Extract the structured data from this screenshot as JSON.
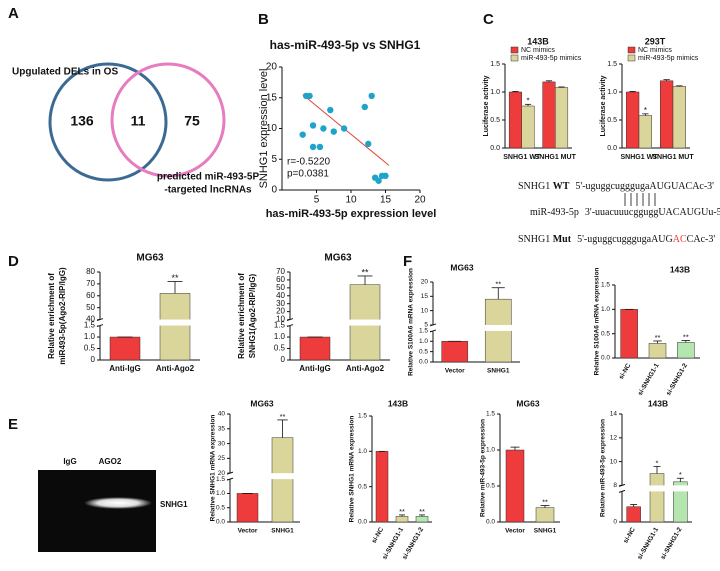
{
  "panel_labels": [
    "A",
    "B",
    "C",
    "D",
    "E",
    "F"
  ],
  "venn": {
    "left": {
      "label": "Upgulated DELs in OS",
      "count": 136,
      "color": "#3b6b94"
    },
    "right": {
      "label": [
        "predicted miR-493-5P",
        "-targeted lncRNAs"
      ],
      "count": 75,
      "color": "#e77cc0"
    },
    "overlap": 11
  },
  "sequences": [
    {
      "name": "SNHG1",
      "tag": "WT",
      "parts": [
        "5'-uguggcugggugaAUGUACAc-3'"
      ]
    },
    {
      "name": "miR-493-5p",
      "parts": [
        "3'-uuacuuucgguggUACAUGUu-5'"
      ]
    },
    {
      "name": "SNHG1",
      "tag": "Mut",
      "parts": [
        "5'-uguggcugggugaAUG",
        "AC",
        "CAc-3'"
      ]
    }
  ],
  "gel": {
    "lanes": [
      "IgG",
      "AGO2"
    ],
    "band": "SNHG1"
  },
  "chart_data": [
    {
      "type": "scatter",
      "title": "has-miR-493-5p vs SNHG1",
      "xlabel": "has-miR-493-5p expression level",
      "ylabel": "SNHG1 expression level",
      "x": [
        3.5,
        4,
        3,
        4.5,
        4.5,
        5.5,
        6,
        7,
        7.5,
        9,
        12,
        12.5,
        13,
        13.5,
        14.5,
        14,
        15
      ],
      "y": [
        15.3,
        15.3,
        9,
        10.5,
        7,
        7,
        10,
        13,
        9.5,
        10,
        13.5,
        7.5,
        15.3,
        2,
        2.3,
        1.5,
        2.3
      ],
      "color": "#1ea4c9",
      "fit_line": {
        "x": [
          3,
          15.5
        ],
        "y": [
          15.5,
          4
        ],
        "color": "#e0453f"
      },
      "annotations": [
        "r=-0.5220",
        "p=0.0381"
      ],
      "xlim": [
        0,
        20
      ],
      "xticks": [
        5,
        10,
        15,
        20
      ],
      "ylim": [
        0,
        20
      ],
      "yticks": [
        0,
        5,
        10,
        15,
        20
      ]
    },
    {
      "type": "bar",
      "title": "143B",
      "ylabel": "Luciferase activity",
      "categories": [
        "SNHG1 WT",
        "SNHG1 MUT"
      ],
      "series": [
        {
          "name": "NC mimics",
          "color": "#ee3b3b",
          "values": [
            1.0,
            1.18
          ],
          "errors": [
            0.01,
            0.02
          ]
        },
        {
          "name": "miR-493-5p mimics",
          "color": "#d9d59b",
          "values": [
            0.75,
            1.08
          ],
          "errors": [
            0.03,
            0.01
          ],
          "sig": [
            "*",
            null
          ]
        }
      ],
      "ylim": [
        0,
        1.5
      ],
      "yticks": [
        {
          "value": 0,
          "label": "0.0"
        },
        0.5,
        {
          "value": 1,
          "label": "1.0"
        },
        1.5
      ],
      "legend": "upper left"
    },
    {
      "type": "bar",
      "title": "293T",
      "ylabel": "Luciferase activity",
      "categories": [
        "SNHG1 WT",
        "SNHG1 MUT"
      ],
      "series": [
        {
          "name": "NC mimics",
          "color": "#ee3b3b",
          "values": [
            1.0,
            1.2
          ],
          "errors": [
            0.01,
            0.02
          ]
        },
        {
          "name": "miR-493-5p mimics",
          "color": "#d9d59b",
          "values": [
            0.58,
            1.1
          ],
          "errors": [
            0.03,
            0.01
          ],
          "sig": [
            "*",
            null
          ]
        }
      ],
      "ylim": [
        0,
        1.5
      ],
      "yticks": [
        {
          "value": 0,
          "label": "0.0"
        },
        0.5,
        {
          "value": 1,
          "label": "1.0"
        },
        1.5
      ],
      "legend": "upper left"
    },
    {
      "type": "bar",
      "title": "MG63",
      "ylabel": [
        "Relative enrichment of",
        "miR493-5p(Ago2-RIP/IgG)"
      ],
      "categories": [
        "Anti-IgG",
        "Anti-Ago2"
      ],
      "values": [
        1,
        62
      ],
      "errors": [
        0,
        10
      ],
      "sig": [
        null,
        "**"
      ],
      "colors": [
        "#ee3b3b",
        "#d9d59b"
      ],
      "segments": [
        {
          "ylim": [
            0,
            1.5
          ],
          "yticks": [
            0,
            0.5,
            {
              "value": 1,
              "label": "1.0"
            },
            1.5
          ]
        },
        {
          "ylim": [
            40,
            80
          ],
          "yticks": [
            40,
            50,
            60,
            70,
            80
          ]
        }
      ]
    },
    {
      "type": "bar",
      "title": "MG63",
      "ylabel": [
        "Relative enrichment of",
        "SNHG1(Ago2-RIP/IgG)"
      ],
      "categories": [
        "Anti-IgG",
        "Anti-Ago2"
      ],
      "values": [
        1,
        54
      ],
      "errors": [
        0,
        11
      ],
      "sig": [
        null,
        "**"
      ],
      "colors": [
        "#ee3b3b",
        "#d9d59b"
      ],
      "segments": [
        {
          "ylim": [
            0,
            1.5
          ],
          "yticks": [
            0,
            0.5,
            {
              "value": 1,
              "label": "1.0"
            },
            1.5
          ]
        },
        {
          "ylim": [
            10,
            70
          ],
          "yticks": [
            10,
            20,
            30,
            40,
            50,
            60,
            70
          ]
        }
      ]
    },
    {
      "type": "bar",
      "title": "MG63",
      "ylabel": "Relative S100A6 mRNA expression",
      "categories": [
        "Vector",
        "SNHG1"
      ],
      "values": [
        1,
        14
      ],
      "errors": [
        0,
        4
      ],
      "sig": [
        null,
        "**"
      ],
      "colors": [
        "#ee3b3b",
        "#d9d59b"
      ],
      "segments": [
        {
          "ylim": [
            0,
            1.5
          ],
          "yticks": [
            {
              "value": 0,
              "label": "0.0"
            },
            0.5,
            {
              "value": 1,
              "label": "1.0"
            },
            1.5
          ]
        },
        {
          "ylim": [
            5,
            20
          ],
          "yticks": [
            5,
            10,
            15,
            20
          ]
        }
      ]
    },
    {
      "type": "bar",
      "title": "143B",
      "ylabel": "Relative S100A6 mRNA expression",
      "categories": [
        "si-NC",
        "si-SNHG1-1",
        "si-SNHG1-2"
      ],
      "values": [
        1,
        0.3,
        0.32
      ],
      "errors": [
        0,
        0.05,
        0.04
      ],
      "sig": [
        null,
        "**",
        "**"
      ],
      "colors": [
        "#ee3b3b",
        "#d9d59b",
        "#b6e6af"
      ],
      "ylim": [
        0,
        1.5
      ],
      "yticks": [
        {
          "value": 0,
          "label": "0.0"
        },
        0.5,
        {
          "value": 1,
          "label": "1.0"
        },
        1.5
      ]
    },
    {
      "type": "bar",
      "title": "MG63",
      "ylabel": "Relative SNHG1 mRNA expression",
      "categories": [
        "Vector",
        "SNHG1"
      ],
      "values": [
        1,
        32
      ],
      "errors": [
        0,
        6
      ],
      "sig": [
        null,
        "**"
      ],
      "colors": [
        "#ee3b3b",
        "#d9d59b"
      ],
      "segments": [
        {
          "ylim": [
            0,
            1.5
          ],
          "yticks": [
            {
              "value": 0,
              "label": "0.0"
            },
            0.5,
            {
              "value": 1,
              "label": "1.0"
            },
            1.5
          ]
        },
        {
          "ylim": [
            20,
            40
          ],
          "yticks": [
            20,
            25,
            30,
            35,
            40
          ]
        }
      ]
    },
    {
      "type": "bar",
      "title": "143B",
      "ylabel": "Relative SNHG1 mRNA expression",
      "categories": [
        "si-NC",
        "si-SNHG1-1",
        "si-SNHG1-2"
      ],
      "values": [
        1,
        0.08,
        0.08
      ],
      "errors": [
        0,
        0.02,
        0.02
      ],
      "sig": [
        null,
        "**",
        "**"
      ],
      "colors": [
        "#ee3b3b",
        "#d9d59b",
        "#b6e6af"
      ],
      "ylim": [
        0,
        1.5
      ],
      "yticks": [
        {
          "value": 0,
          "label": "0.0"
        },
        0.5,
        {
          "value": 1,
          "label": "1.0"
        },
        1.5
      ]
    },
    {
      "type": "bar",
      "title": "MG63",
      "ylabel": "Relative miR-493-5p expression",
      "categories": [
        "Vector",
        "SNHG1"
      ],
      "values": [
        1,
        0.2
      ],
      "errors": [
        0.04,
        0.03
      ],
      "sig": [
        null,
        "**"
      ],
      "colors": [
        "#ee3b3b",
        "#d9d59b"
      ],
      "ylim": [
        0,
        1.5
      ],
      "yticks": [
        {
          "value": 0,
          "label": "0.0"
        },
        0.5,
        {
          "value": 1,
          "label": "1.0"
        },
        1.5
      ]
    },
    {
      "type": "bar",
      "title": "143B",
      "ylabel": "Relative miR-493-5p expression",
      "categories": [
        "si-NC",
        "si-SNHG1-1",
        "si-SNHG1-2"
      ],
      "values": [
        1,
        9,
        8.3
      ],
      "errors": [
        0.15,
        0.6,
        0.3
      ],
      "sig": [
        null,
        "*",
        "*"
      ],
      "colors": [
        "#ee3b3b",
        "#d9d59b",
        "#b6e6af"
      ],
      "segments": [
        {
          "ylim": [
            0,
            2
          ],
          "yticks": [
            0
          ]
        },
        {
          "ylim": [
            8,
            14
          ],
          "yticks": [
            8,
            10,
            12,
            14
          ]
        }
      ]
    }
  ]
}
